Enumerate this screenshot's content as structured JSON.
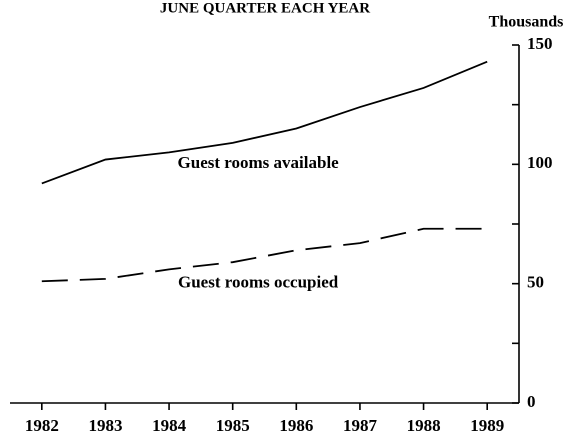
{
  "chart_data": {
    "type": "line",
    "title": "JUNE QUARTER EACH YEAR",
    "y_label": "Thousands",
    "x": [
      1982,
      1983,
      1984,
      1985,
      1986,
      1987,
      1988,
      1989
    ],
    "xlim": [
      1981.5,
      1989.5
    ],
    "xticks": [
      1982,
      1983,
      1984,
      1985,
      1986,
      1987,
      1988,
      1989
    ],
    "ylim": [
      0,
      150
    ],
    "yticks": [
      0,
      50,
      100,
      150
    ],
    "yticks_minor": [
      25,
      75,
      125
    ],
    "y_axis_side": "right",
    "grid": false,
    "series": [
      {
        "name": "Guest rooms available",
        "color": "#000000",
        "dash": false,
        "values": [
          92,
          102,
          105,
          109,
          115,
          124,
          132,
          143
        ]
      },
      {
        "name": "Guest rooms occupied",
        "color": "#000000",
        "dash": true,
        "values": [
          51,
          52,
          56,
          59,
          64,
          67,
          73,
          73
        ]
      }
    ],
    "annotations": [
      {
        "text": "Guest rooms available",
        "x": 1985.4,
        "y": 100
      },
      {
        "text": "Guest rooms occupied",
        "x": 1985.4,
        "y": 50
      }
    ]
  }
}
